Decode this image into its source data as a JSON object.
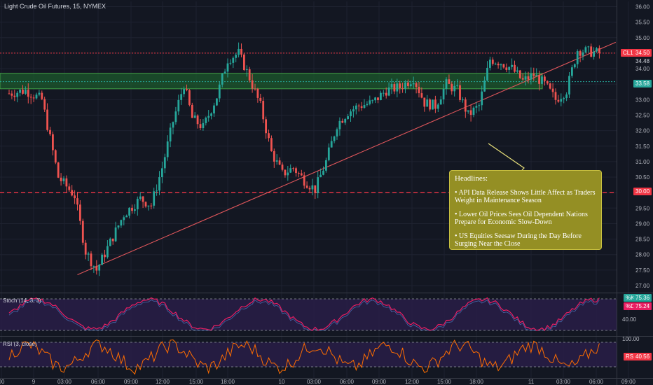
{
  "title": "Light Crude Oil Futures, 15, NYMEX",
  "stoch_label": "Stoch (14, 3, 3)",
  "rsi_label": "RSI (3, close)",
  "headlines": {
    "title": "Headlines:",
    "items": [
      "• API Data Release Shows Little Affect as Traders Weight in Maintenance Season",
      "• Lower Oil Prices Sees Oil Dependent Nations Prepare for Economic Slow-Down",
      "• US Equities Seesaw During the Day Before Surging Near the Close"
    ]
  },
  "price_labels": {
    "last_symbol": "CL1!",
    "last": "34.50",
    "prev": "34.48",
    "green_level": "33.58",
    "red_level": "30.00",
    "stoch_k": "75.36",
    "stoch_d": "75.24",
    "stoch_k_tag": "%K",
    "stoch_d_tag": "%D",
    "rsi": "40.56",
    "rsi_tag": "RSI"
  },
  "colors": {
    "background": "#131722",
    "up": "#26a69a",
    "down": "#ef5350",
    "level_line": "#f23645",
    "zone_fill": "#1c5a2c",
    "zone_border": "#43a047",
    "annotation": "#948f24",
    "stoch_k": "#e91e63",
    "rsi_line": "#ff6d00"
  },
  "chart_data": {
    "type": "candlestick",
    "price_axis": {
      "min": 27.0,
      "max": 36.0,
      "step": 0.5,
      "ticks": [
        "27.00",
        "27.50",
        "28.00",
        "28.50",
        "29.00",
        "29.50",
        "30.00",
        "30.50",
        "31.00",
        "31.50",
        "32.00",
        "32.50",
        "33.00",
        "33.50",
        "34.00",
        "34.50",
        "35.00",
        "35.50",
        "36.00"
      ]
    },
    "time_axis": [
      "00",
      "9",
      "03:00",
      "06:00",
      "09:00",
      "12:00",
      "15:00",
      "18:00",
      "10",
      "03:00",
      "06:00",
      "09:00",
      "12:00",
      "15:00",
      "18:00",
      "11",
      "03:00",
      "06:00",
      "09:00"
    ],
    "price_path": [
      [
        0,
        33.2
      ],
      [
        6,
        33.3
      ],
      [
        12,
        33.0
      ],
      [
        18,
        30.5
      ],
      [
        24,
        29.9
      ],
      [
        28,
        28.1
      ],
      [
        32,
        27.5
      ],
      [
        37,
        28.4
      ],
      [
        42,
        29.3
      ],
      [
        48,
        29.8
      ],
      [
        52,
        29.6
      ],
      [
        56,
        30.8
      ],
      [
        60,
        32.3
      ],
      [
        64,
        33.5
      ],
      [
        67,
        32.4
      ],
      [
        71,
        32.1
      ],
      [
        76,
        33.1
      ],
      [
        80,
        34.3
      ],
      [
        84,
        34.5
      ],
      [
        88,
        33.7
      ],
      [
        92,
        32.8
      ],
      [
        96,
        31.3
      ],
      [
        100,
        30.6
      ],
      [
        104,
        30.8
      ],
      [
        108,
        30.4
      ],
      [
        112,
        30.1
      ],
      [
        116,
        31.0
      ],
      [
        120,
        32.2
      ],
      [
        124,
        32.6
      ],
      [
        128,
        32.8
      ],
      [
        133,
        32.9
      ],
      [
        138,
        33.3
      ],
      [
        143,
        33.4
      ],
      [
        148,
        33.7
      ],
      [
        152,
        32.9
      ],
      [
        156,
        32.8
      ],
      [
        160,
        33.5
      ],
      [
        164,
        33.3
      ],
      [
        168,
        32.5
      ],
      [
        172,
        32.8
      ],
      [
        176,
        34.3
      ],
      [
        180,
        34.2
      ],
      [
        184,
        34.0
      ],
      [
        188,
        33.6
      ],
      [
        192,
        33.8
      ],
      [
        196,
        33.5
      ],
      [
        200,
        33.0
      ],
      [
        204,
        33.3
      ],
      [
        208,
        34.6
      ],
      [
        212,
        34.55
      ],
      [
        216,
        34.5
      ]
    ],
    "levels": [
      {
        "label": "red_level",
        "value": 30.0,
        "style": "dashed"
      },
      {
        "label": "last",
        "value": 34.5,
        "style": "dotted"
      },
      {
        "label": "green_level",
        "value": 33.58,
        "style": "dotted"
      }
    ],
    "zone": {
      "from": 33.35,
      "to": 33.85
    },
    "trendline": {
      "from_bar": 25,
      "from_value": 27.35,
      "to_bar": 222,
      "to_value": 34.85
    },
    "stochastic": {
      "ylim": [
        0,
        100
      ],
      "ticks": [
        "40.00"
      ],
      "k": 75.36,
      "d": 75.24
    },
    "rsi": {
      "ylim": [
        0,
        100
      ],
      "ticks": [
        "100.00"
      ],
      "last": 40.56
    }
  }
}
